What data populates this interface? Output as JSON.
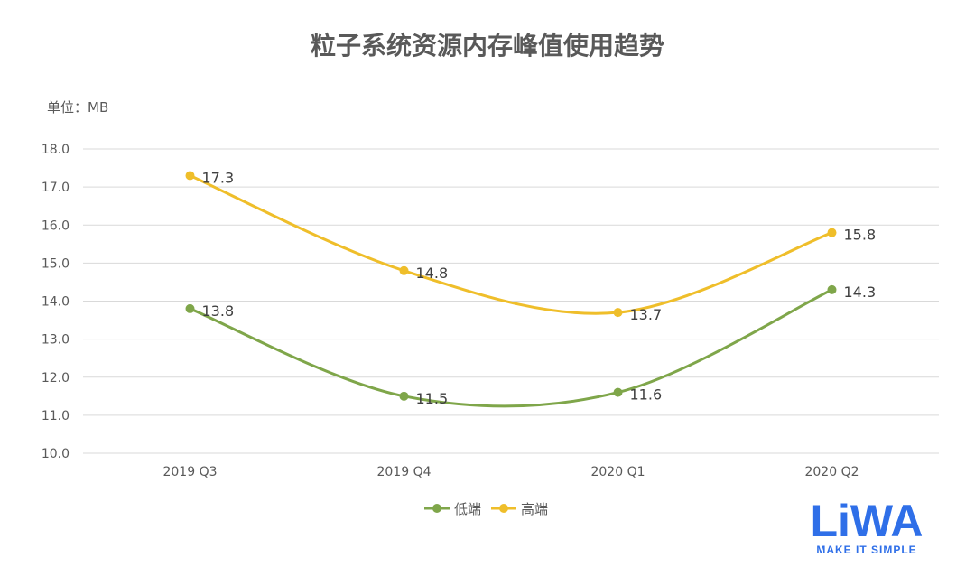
{
  "chart_data": {
    "type": "line",
    "title": "粒子系统资源内存峰值使用趋势",
    "unit_label": "单位：MB",
    "categories": [
      "2019 Q3",
      "2019 Q4",
      "2020 Q1",
      "2020 Q2"
    ],
    "ylim": [
      10.0,
      18.0
    ],
    "yticks": [
      "10.0",
      "11.0",
      "12.0",
      "13.0",
      "14.0",
      "15.0",
      "16.0",
      "17.0",
      "18.0"
    ],
    "grid": true,
    "legend_position": "bottom-center",
    "series": [
      {
        "name": "低端",
        "color": "#7FA64A",
        "values": [
          13.8,
          11.5,
          11.6,
          14.3
        ],
        "labels": [
          "13.8",
          "11.5",
          "11.6",
          "14.3"
        ]
      },
      {
        "name": "高端",
        "color": "#EFBE2A",
        "values": [
          17.3,
          14.8,
          13.7,
          15.8
        ],
        "labels": [
          "17.3",
          "14.8",
          "13.7",
          "15.8"
        ]
      }
    ]
  },
  "logo": {
    "text": "LiWA",
    "tagline": "MAKE IT SIMPLE",
    "color": "#2F6FE8"
  }
}
